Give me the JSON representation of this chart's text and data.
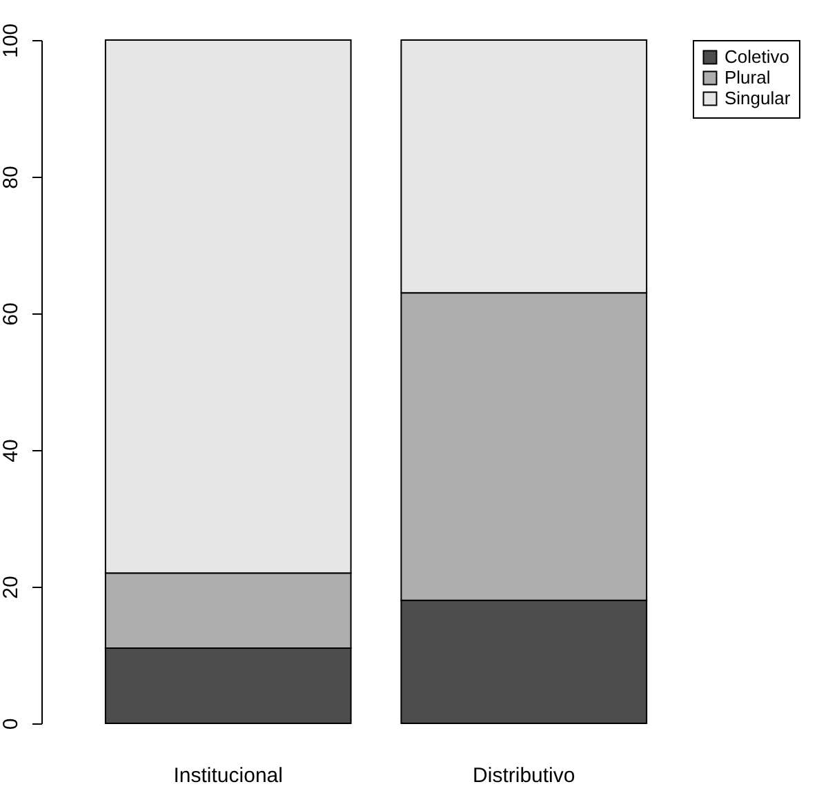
{
  "chart_data": {
    "type": "bar",
    "stacked": true,
    "categories": [
      "Institucional",
      "Distributivo"
    ],
    "series": [
      {
        "name": "Coletivo",
        "color": "#4d4d4d",
        "values": [
          11,
          18
        ]
      },
      {
        "name": "Plural",
        "color": "#aeaeae",
        "values": [
          11,
          45
        ]
      },
      {
        "name": "Singular",
        "color": "#e6e6e6",
        "values": [
          78,
          37
        ]
      }
    ],
    "ylim": [
      0,
      100
    ],
    "yticks": [
      0,
      20,
      40,
      60,
      80,
      100
    ],
    "grid": false,
    "legend": "top right"
  }
}
